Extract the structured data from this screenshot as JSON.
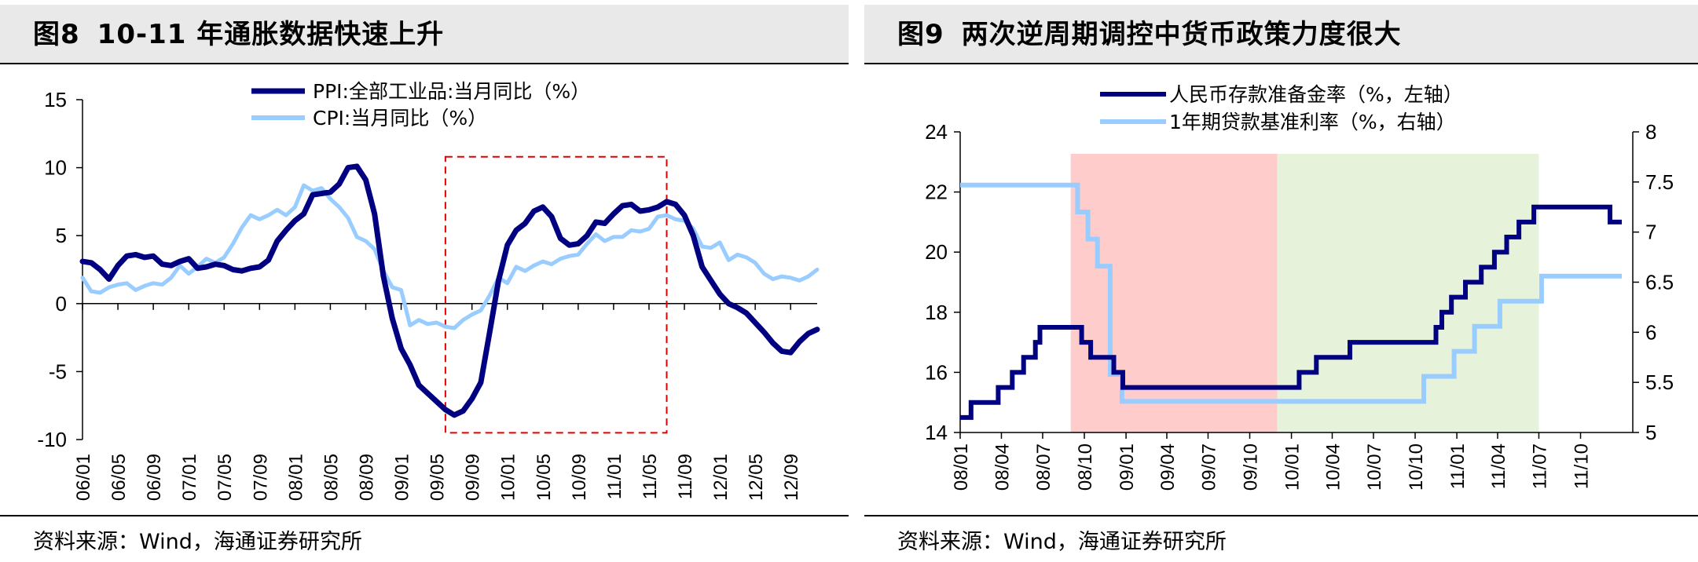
{
  "left": {
    "fig_num": "图8",
    "title": "10-11 年通胀数据快速上升",
    "source": "资料来源：Wind，海通证券研究所",
    "chart_data": {
      "type": "line",
      "x_ticks": [
        "06/01",
        "06/05",
        "06/09",
        "07/01",
        "07/05",
        "07/09",
        "08/01",
        "08/05",
        "08/09",
        "09/01",
        "09/05",
        "09/09",
        "10/01",
        "10/05",
        "10/09",
        "11/01",
        "11/05",
        "11/09",
        "12/01",
        "12/05",
        "12/09"
      ],
      "ylim": [
        -10,
        15
      ],
      "y_ticks": [
        "15",
        "10",
        "5",
        "0",
        "-5",
        "-10"
      ],
      "y_tick_values": [
        15,
        10,
        5,
        0,
        -5,
        -10
      ],
      "highlight_box": {
        "x_start": "09/06",
        "x_end": "11/07",
        "y_start": -9.5,
        "y_end": 10.8,
        "style": "red-dashed"
      },
      "series": [
        {
          "name": "PPI:全部工业品:当月同比（%）",
          "color": "#000080",
          "start": "2006-01",
          "values": [
            3.1,
            3.0,
            2.5,
            1.8,
            2.8,
            3.5,
            3.6,
            3.4,
            3.5,
            2.9,
            2.8,
            3.1,
            3.3,
            2.6,
            2.7,
            2.9,
            2.8,
            2.5,
            2.4,
            2.6,
            2.7,
            3.2,
            4.6,
            5.4,
            6.1,
            6.6,
            8.0,
            8.1,
            8.2,
            8.8,
            10.0,
            10.1,
            9.1,
            6.6,
            2.0,
            -1.1,
            -3.3,
            -4.5,
            -6.0,
            -6.6,
            -7.2,
            -7.8,
            -8.2,
            -7.9,
            -7.0,
            -5.8,
            -2.1,
            1.7,
            4.3,
            5.4,
            5.9,
            6.8,
            7.1,
            6.4,
            4.8,
            4.3,
            4.4,
            5.0,
            6.0,
            5.9,
            6.6,
            7.2,
            7.3,
            6.8,
            6.9,
            7.1,
            7.5,
            7.3,
            6.5,
            5.0,
            2.7,
            1.7,
            0.7,
            0.0,
            -0.3,
            -0.7,
            -1.4,
            -2.1,
            -2.9,
            -3.5,
            -3.6,
            -2.8,
            -2.2,
            -1.9
          ]
        },
        {
          "name": "CPI:当月同比（%）",
          "color": "#99ccff",
          "start": "2006-01",
          "values": [
            1.9,
            0.9,
            0.8,
            1.2,
            1.4,
            1.5,
            1.0,
            1.3,
            1.5,
            1.4,
            1.9,
            2.8,
            2.2,
            2.7,
            3.3,
            3.0,
            3.4,
            4.4,
            5.6,
            6.5,
            6.2,
            6.5,
            6.9,
            6.5,
            7.1,
            8.7,
            8.3,
            8.5,
            7.7,
            7.1,
            6.3,
            4.9,
            4.6,
            4.0,
            2.4,
            1.2,
            1.0,
            -1.6,
            -1.2,
            -1.5,
            -1.4,
            -1.7,
            -1.8,
            -1.2,
            -0.8,
            -0.5,
            0.6,
            1.9,
            1.5,
            2.7,
            2.4,
            2.8,
            3.1,
            2.9,
            3.3,
            3.5,
            3.6,
            4.4,
            5.1,
            4.6,
            4.9,
            4.9,
            5.4,
            5.3,
            5.5,
            6.4,
            6.5,
            6.2,
            6.1,
            5.5,
            4.2,
            4.1,
            4.5,
            3.2,
            3.6,
            3.4,
            3.0,
            2.2,
            1.8,
            2.0,
            1.9,
            1.7,
            2.0,
            2.5
          ]
        }
      ]
    }
  },
  "right": {
    "fig_num": "图9",
    "title": "两次逆周期调控中货币政策力度很大",
    "source": "资料来源：Wind，海通证券研究所",
    "chart_data": {
      "type": "line",
      "x_ticks": [
        "08/01",
        "08/04",
        "08/07",
        "08/10",
        "09/01",
        "09/04",
        "09/07",
        "09/10",
        "10/01",
        "10/04",
        "10/07",
        "10/10",
        "11/01",
        "11/04",
        "11/07",
        "11/10"
      ],
      "left_axis": {
        "label": "人民币存款准备金率（%，左轴）",
        "ylim": [
          14,
          24
        ],
        "ticks": [
          "24",
          "22",
          "20",
          "18",
          "16",
          "14"
        ],
        "tick_values": [
          24,
          22,
          20,
          18,
          16,
          14
        ]
      },
      "right_axis": {
        "label": "1年期贷款基准利率（%，右轴）",
        "ylim": [
          5,
          8
        ],
        "ticks": [
          "8",
          "7.5",
          "7",
          "6.5",
          "6",
          "5.5",
          "5"
        ],
        "tick_values": [
          8,
          7.5,
          7,
          6.5,
          6,
          5.5,
          5
        ]
      },
      "shaded_regions": [
        {
          "x_start": "08/09",
          "x_end": "09/12",
          "color": "#ffcccc"
        },
        {
          "x_start": "09/12",
          "x_end": "11/07",
          "color": "#e6f2d9"
        }
      ],
      "series": [
        {
          "name": "人民币存款准备金率（%，左轴）",
          "color": "#000080",
          "axis": "left",
          "steps": [
            [
              "2008-01-01",
              14.5
            ],
            [
              "2008-01-25",
              15.0
            ],
            [
              "2008-03-25",
              15.5
            ],
            [
              "2008-04-25",
              16.0
            ],
            [
              "2008-05-20",
              16.5
            ],
            [
              "2008-06-15",
              17.0
            ],
            [
              "2008-06-25",
              17.5
            ],
            [
              "2008-09-25",
              17.0
            ],
            [
              "2008-10-15",
              16.5
            ],
            [
              "2008-12-05",
              16.0
            ],
            [
              "2008-12-25",
              15.5
            ],
            [
              "2010-01-18",
              16.0
            ],
            [
              "2010-02-25",
              16.5
            ],
            [
              "2010-05-10",
              17.0
            ],
            [
              "2010-11-16",
              17.5
            ],
            [
              "2010-11-29",
              18.0
            ],
            [
              "2010-12-20",
              18.5
            ],
            [
              "2011-01-20",
              19.0
            ],
            [
              "2011-02-24",
              19.5
            ],
            [
              "2011-03-25",
              20.0
            ],
            [
              "2011-04-21",
              20.5
            ],
            [
              "2011-05-18",
              21.0
            ],
            [
              "2011-06-20",
              21.5
            ],
            [
              "2011-12-05",
              21.0
            ],
            [
              "2011-12-31",
              21.0
            ]
          ]
        },
        {
          "name": "1年期贷款基准利率（%，右轴）",
          "color": "#99ccff",
          "axis": "right",
          "steps": [
            [
              "2008-01-01",
              7.47
            ],
            [
              "2008-09-16",
              7.2
            ],
            [
              "2008-10-09",
              6.93
            ],
            [
              "2008-10-30",
              6.66
            ],
            [
              "2008-11-27",
              5.58
            ],
            [
              "2008-12-23",
              5.31
            ],
            [
              "2010-10-20",
              5.56
            ],
            [
              "2010-12-26",
              5.81
            ],
            [
              "2011-02-09",
              6.06
            ],
            [
              "2011-04-06",
              6.31
            ],
            [
              "2011-07-07",
              6.56
            ],
            [
              "2011-12-31",
              6.56
            ]
          ]
        }
      ]
    }
  }
}
